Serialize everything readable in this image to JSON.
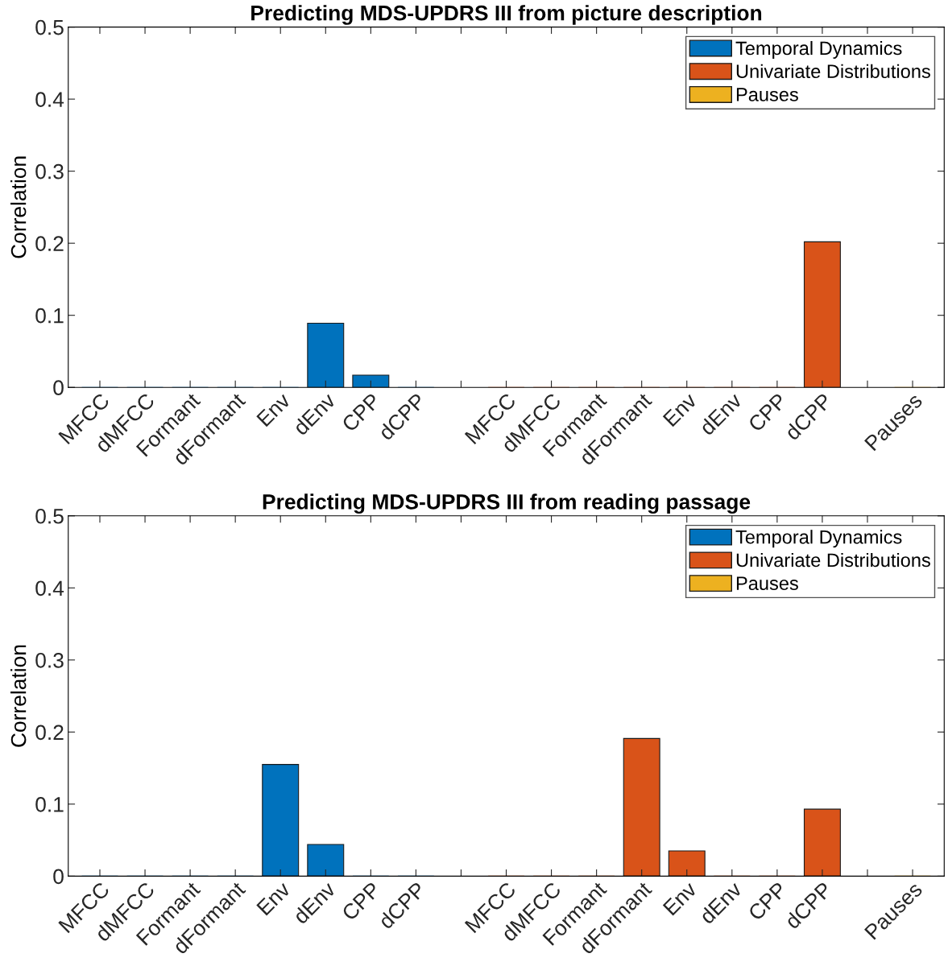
{
  "chart_data": [
    {
      "type": "bar",
      "title": "Predicting MDS-UPDRS III from picture description",
      "ylabel": "Correlation",
      "categories": [
        "MFCC",
        "dMFCC",
        "Formant",
        "dFormant",
        "Env",
        "dEnv",
        "CPP",
        "dCPP",
        null,
        "MFCC",
        "dMFCC",
        "Formant",
        "dFormant",
        "Env",
        "dEnv",
        "CPP",
        "dCPP",
        null,
        "Pauses"
      ],
      "series": [
        {
          "name": "Temporal Dynamics",
          "color": "#0072bd",
          "values": [
            0,
            0,
            0,
            0,
            0,
            0.089,
            0.017,
            0,
            null,
            null,
            null,
            null,
            null,
            null,
            null,
            null,
            null,
            null,
            null
          ]
        },
        {
          "name": "Univariate Distributions",
          "color": "#d95319",
          "values": [
            null,
            null,
            null,
            null,
            null,
            null,
            null,
            null,
            null,
            0,
            0,
            0,
            0,
            0,
            0,
            0,
            0.202,
            null,
            null
          ]
        },
        {
          "name": "Pauses",
          "color": "#edb120",
          "values": [
            null,
            null,
            null,
            null,
            null,
            null,
            null,
            null,
            null,
            null,
            null,
            null,
            null,
            null,
            null,
            null,
            null,
            null,
            0
          ]
        }
      ],
      "ylim": [
        0,
        0.5
      ],
      "yticks": [
        0,
        0.1,
        0.2,
        0.3,
        0.4,
        0.5
      ],
      "grid": false,
      "legend": "top right"
    },
    {
      "type": "bar",
      "title": "Predicting MDS-UPDRS III from reading passage",
      "ylabel": "Correlation",
      "categories": [
        "MFCC",
        "dMFCC",
        "Formant",
        "dFormant",
        "Env",
        "dEnv",
        "CPP",
        "dCPP",
        null,
        "MFCC",
        "dMFCC",
        "Formant",
        "dFormant",
        "Env",
        "dEnv",
        "CPP",
        "dCPP",
        null,
        "Pauses"
      ],
      "series": [
        {
          "name": "Temporal Dynamics",
          "color": "#0072bd",
          "values": [
            0,
            0,
            0,
            0,
            0.155,
            0.044,
            0,
            0,
            null,
            null,
            null,
            null,
            null,
            null,
            null,
            null,
            null,
            null,
            null
          ]
        },
        {
          "name": "Univariate Distributions",
          "color": "#d95319",
          "values": [
            null,
            null,
            null,
            null,
            null,
            null,
            null,
            null,
            null,
            0,
            0,
            0,
            0.191,
            0.035,
            0,
            0,
            0.093,
            null,
            null
          ]
        },
        {
          "name": "Pauses",
          "color": "#edb120",
          "values": [
            null,
            null,
            null,
            null,
            null,
            null,
            null,
            null,
            null,
            null,
            null,
            null,
            null,
            null,
            null,
            null,
            null,
            null,
            0
          ]
        }
      ],
      "ylim": [
        0,
        0.5
      ],
      "yticks": [
        0,
        0.1,
        0.2,
        0.3,
        0.4,
        0.5
      ],
      "grid": false,
      "legend": "top right"
    }
  ]
}
